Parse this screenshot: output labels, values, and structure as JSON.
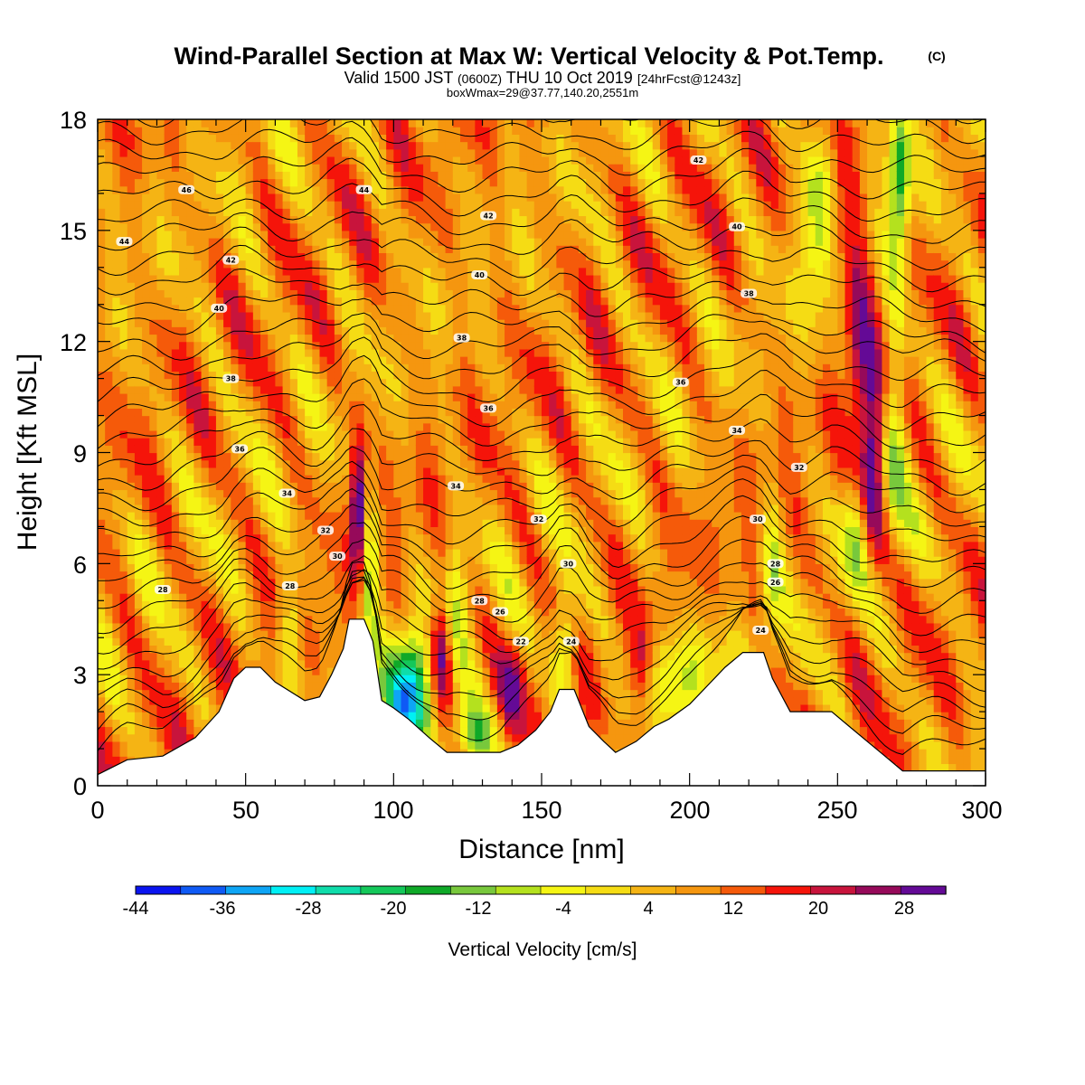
{
  "chart_data": {
    "type": "heatmap",
    "title": "Wind-Parallel Section at Max W: Vertical Velocity & Pot.Temp.",
    "title_mark": "(C)",
    "subtitle_parts": [
      "Valid 1500 JST",
      "(0600Z)",
      "THU 10 Oct 2019",
      "[24hrFcst@1243z]"
    ],
    "subtitle2": "boxWmax=29@37.77,140.20,2551m",
    "xlabel": "Distance [nm]",
    "ylabel": "Height [Kft MSL]",
    "xlim": [
      0,
      300
    ],
    "ylim": [
      0,
      18
    ],
    "x_ticks": [
      "0",
      "50",
      "100",
      "150",
      "200",
      "250",
      "300"
    ],
    "y_ticks": [
      "0",
      "3",
      "6",
      "9",
      "12",
      "15",
      "18"
    ],
    "colorbar": {
      "title": "Vertical Velocity [cm/s]",
      "tick_labels": [
        "-44",
        "-36",
        "-28",
        "-20",
        "-12",
        "-4",
        "4",
        "12",
        "20",
        "28"
      ],
      "range": [
        -48,
        32
      ],
      "colors": [
        "#0a14f0",
        "#0f5af5",
        "#0ea5f5",
        "#00f0f5",
        "#0fdcaa",
        "#14c85a",
        "#0fa928",
        "#78c83c",
        "#b4e11e",
        "#f5f514",
        "#f5dc14",
        "#f5b414",
        "#f5960f",
        "#f55a0a",
        "#f5140a",
        "#c8143c",
        "#960a5a",
        "#640a96"
      ]
    },
    "theta_contour_labels": [
      {
        "x": 30,
        "z": 16.1,
        "v": "46"
      },
      {
        "x": 9,
        "z": 14.7,
        "v": "44"
      },
      {
        "x": 90,
        "z": 16.1,
        "v": "44"
      },
      {
        "x": 45,
        "z": 14.2,
        "v": "42"
      },
      {
        "x": 132,
        "z": 15.4,
        "v": "42"
      },
      {
        "x": 203,
        "z": 16.9,
        "v": "42"
      },
      {
        "x": 41,
        "z": 12.9,
        "v": "40"
      },
      {
        "x": 129,
        "z": 13.8,
        "v": "40"
      },
      {
        "x": 216,
        "z": 15.1,
        "v": "40"
      },
      {
        "x": 45,
        "z": 11.0,
        "v": "38"
      },
      {
        "x": 123,
        "z": 12.1,
        "v": "38"
      },
      {
        "x": 220,
        "z": 13.3,
        "v": "38"
      },
      {
        "x": 48,
        "z": 9.1,
        "v": "36"
      },
      {
        "x": 132,
        "z": 10.2,
        "v": "36"
      },
      {
        "x": 197,
        "z": 10.9,
        "v": "36"
      },
      {
        "x": 64,
        "z": 7.9,
        "v": "34"
      },
      {
        "x": 121,
        "z": 8.1,
        "v": "34"
      },
      {
        "x": 216,
        "z": 9.6,
        "v": "34"
      },
      {
        "x": 77,
        "z": 6.9,
        "v": "32"
      },
      {
        "x": 149,
        "z": 7.2,
        "v": "32"
      },
      {
        "x": 237,
        "z": 8.6,
        "v": "32"
      },
      {
        "x": 81,
        "z": 6.2,
        "v": "30"
      },
      {
        "x": 159,
        "z": 6.0,
        "v": "30"
      },
      {
        "x": 223,
        "z": 7.2,
        "v": "30"
      },
      {
        "x": 22,
        "z": 5.3,
        "v": "28"
      },
      {
        "x": 65,
        "z": 5.4,
        "v": "28"
      },
      {
        "x": 129,
        "z": 5.0,
        "v": "28"
      },
      {
        "x": 229,
        "z": 6.0,
        "v": "28"
      },
      {
        "x": 136,
        "z": 4.7,
        "v": "26"
      },
      {
        "x": 229,
        "z": 5.5,
        "v": "26"
      },
      {
        "x": 143,
        "z": 3.9,
        "v": "22"
      },
      {
        "x": 160,
        "z": 3.9,
        "v": "24"
      },
      {
        "x": 224,
        "z": 4.2,
        "v": "24"
      }
    ],
    "terrain": [
      {
        "x": 0,
        "z": 0.3
      },
      {
        "x": 10,
        "z": 0.7
      },
      {
        "x": 22,
        "z": 0.8
      },
      {
        "x": 33,
        "z": 1.3
      },
      {
        "x": 41,
        "z": 2.0
      },
      {
        "x": 46,
        "z": 2.9
      },
      {
        "x": 50,
        "z": 3.2
      },
      {
        "x": 55,
        "z": 3.2
      },
      {
        "x": 60,
        "z": 2.8
      },
      {
        "x": 66,
        "z": 2.5
      },
      {
        "x": 70,
        "z": 2.3
      },
      {
        "x": 75,
        "z": 2.4
      },
      {
        "x": 79,
        "z": 3.0
      },
      {
        "x": 83,
        "z": 3.7
      },
      {
        "x": 85,
        "z": 4.5
      },
      {
        "x": 90,
        "z": 4.5
      },
      {
        "x": 93,
        "z": 3.9
      },
      {
        "x": 96,
        "z": 2.3
      },
      {
        "x": 100,
        "z": 2.1
      },
      {
        "x": 105,
        "z": 1.8
      },
      {
        "x": 112,
        "z": 1.3
      },
      {
        "x": 118,
        "z": 0.9
      },
      {
        "x": 125,
        "z": 0.9
      },
      {
        "x": 136,
        "z": 0.9
      },
      {
        "x": 142,
        "z": 1.1
      },
      {
        "x": 148,
        "z": 1.5
      },
      {
        "x": 153,
        "z": 2.0
      },
      {
        "x": 156,
        "z": 2.6
      },
      {
        "x": 161,
        "z": 2.6
      },
      {
        "x": 166,
        "z": 1.6
      },
      {
        "x": 171,
        "z": 1.2
      },
      {
        "x": 175,
        "z": 0.9
      },
      {
        "x": 182,
        "z": 1.2
      },
      {
        "x": 188,
        "z": 1.6
      },
      {
        "x": 193,
        "z": 1.8
      },
      {
        "x": 200,
        "z": 2.2
      },
      {
        "x": 206,
        "z": 2.7
      },
      {
        "x": 212,
        "z": 3.2
      },
      {
        "x": 218,
        "z": 3.6
      },
      {
        "x": 225,
        "z": 3.6
      },
      {
        "x": 228,
        "z": 2.9
      },
      {
        "x": 234,
        "z": 2.0
      },
      {
        "x": 240,
        "z": 2.0
      },
      {
        "x": 248,
        "z": 2.0
      },
      {
        "x": 254,
        "z": 1.6
      },
      {
        "x": 260,
        "z": 1.2
      },
      {
        "x": 266,
        "z": 0.8
      },
      {
        "x": 272,
        "z": 0.4
      },
      {
        "x": 280,
        "z": 0.4
      },
      {
        "x": 300,
        "z": 0.4
      }
    ],
    "w_features": [
      {
        "x": 106,
        "z": 2.6,
        "sx": 6,
        "sz": 1.1,
        "w": -34
      },
      {
        "x": 103,
        "z": 2.2,
        "sx": 3,
        "sz": 0.6,
        "w": -8
      },
      {
        "x": 92,
        "z": 5.8,
        "sx": 2.5,
        "sz": 1.4,
        "w": -18
      },
      {
        "x": 88,
        "z": 7.5,
        "sx": 1.8,
        "sz": 1.4,
        "w": 28
      },
      {
        "x": 116,
        "z": 3.6,
        "sx": 3,
        "sz": 1.0,
        "w": 30
      },
      {
        "x": 121,
        "z": 5.2,
        "sx": 3,
        "sz": 1.3,
        "w": -14
      },
      {
        "x": 126,
        "z": 1.3,
        "sx": 6,
        "sz": 0.6,
        "w": -20
      },
      {
        "x": 158,
        "z": 3.9,
        "sx": 3,
        "sz": 1.0,
        "w": -16
      },
      {
        "x": 140,
        "z": 2.7,
        "sx": 3,
        "sz": 0.8,
        "w": 16
      },
      {
        "x": 184,
        "z": 3.2,
        "sx": 3,
        "sz": 0.9,
        "w": 14
      },
      {
        "x": 196,
        "z": 3.0,
        "sx": 10,
        "sz": 0.9,
        "w": -14
      },
      {
        "x": 65,
        "z": 4.0,
        "sx": 3,
        "sz": 1.0,
        "w": -14
      },
      {
        "x": 228,
        "z": 6.0,
        "sx": 2.5,
        "sz": 1.5,
        "w": -12
      },
      {
        "x": 262,
        "z": 9.0,
        "sx": 3,
        "sz": 2.0,
        "w": 22
      },
      {
        "x": 257,
        "z": 12.5,
        "sx": 3,
        "sz": 2.0,
        "w": 16
      },
      {
        "x": 252,
        "z": 15.5,
        "sx": 3,
        "sz": 1.5,
        "w": 10
      },
      {
        "x": 269,
        "z": 10.0,
        "sx": 3,
        "sz": 2.5,
        "w": -14
      },
      {
        "x": 271,
        "z": 16.5,
        "sx": 2.5,
        "sz": 1.6,
        "w": -24
      },
      {
        "x": 243,
        "z": 15.5,
        "sx": 4,
        "sz": 2.0,
        "w": -14
      },
      {
        "x": 256,
        "z": 6.8,
        "sx": 3,
        "sz": 1.2,
        "w": -12
      }
    ]
  }
}
